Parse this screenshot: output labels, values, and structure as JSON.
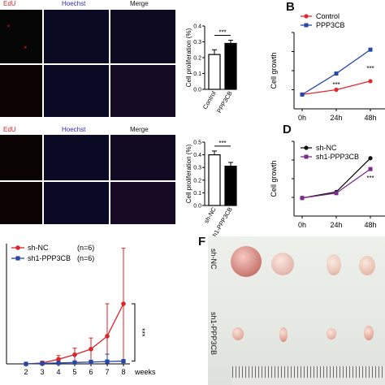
{
  "panel_letters": {
    "b": "B",
    "d": "D",
    "f": "F"
  },
  "micrograph_headers": {
    "top": {
      "edu": "EdU",
      "hoechst": "Hoechst",
      "merge": "Merge"
    },
    "bottom": {
      "edu": "EdU",
      "hoechst": "Hoechst",
      "merge": "Merge"
    }
  },
  "photo": {
    "row1_label": "sh-NC",
    "row2_label": "sh1-PPP3CB"
  },
  "chart_data": [
    {
      "id": "A-bar",
      "type": "bar",
      "categories": [
        "Control",
        "PPP3CB"
      ],
      "values": [
        0.22,
        0.29
      ],
      "errors": [
        0.03,
        0.02
      ],
      "fills": [
        "#ffffff",
        "#000000"
      ],
      "ylabel": "Cell proliferation (%)",
      "ylim": [
        0.0,
        0.4
      ],
      "yticks": [
        "0.0",
        "0.1",
        "0.2",
        "0.3",
        "0.4"
      ],
      "annotation": "***"
    },
    {
      "id": "B-line",
      "type": "line",
      "categories": [
        "0h",
        "24h",
        "48h"
      ],
      "series": [
        {
          "name": "Control",
          "color": "#e0282e",
          "marker": "circle",
          "values": [
            0.15,
            0.2,
            0.29
          ]
        },
        {
          "name": "PPP3CB",
          "color": "#2747a8",
          "marker": "square",
          "values": [
            0.15,
            0.37,
            0.62
          ]
        }
      ],
      "ylabel": "Cell growth",
      "annotations": [
        "***",
        "***"
      ]
    },
    {
      "id": "C-bar",
      "type": "bar",
      "categories": [
        "sh-NC",
        "sh1-PPP3CB"
      ],
      "values": [
        0.4,
        0.31
      ],
      "errors": [
        0.03,
        0.03
      ],
      "fills": [
        "#ffffff",
        "#000000"
      ],
      "ylabel": "Cell proliferation (%)",
      "ylim": [
        0.0,
        0.5
      ],
      "yticks": [
        "0.0",
        "0.1",
        "0.2",
        "0.3",
        "0.4",
        "0.5"
      ],
      "annotation": "***"
    },
    {
      "id": "D-line",
      "type": "line",
      "categories": [
        "0h",
        "24h",
        "48h"
      ],
      "series": [
        {
          "name": "sh-NC",
          "color": "#111111",
          "marker": "circle",
          "values": [
            0.15,
            0.2,
            0.48
          ]
        },
        {
          "name": "sh1-PPP3CB",
          "color": "#7a2c8c",
          "marker": "square",
          "values": [
            0.15,
            0.19,
            0.39
          ]
        }
      ],
      "ylabel": "Cell growth",
      "annotations": [
        "***"
      ]
    },
    {
      "id": "E-line",
      "type": "line",
      "x": [
        2,
        3,
        4,
        5,
        6,
        7,
        8
      ],
      "xticks": [
        "2",
        "3",
        "4",
        "5",
        "6",
        "7",
        "8"
      ],
      "xlabel": "weeks",
      "series": [
        {
          "name": "sh-NC",
          "n_label": "(n=6)",
          "color": "#d9262b",
          "marker": "circle",
          "values": [
            0.0,
            0.1,
            0.5,
            1.0,
            1.6,
            3.0,
            6.5
          ],
          "errors": [
            0.05,
            0.2,
            0.4,
            0.7,
            1.2,
            3.5,
            6.0
          ]
        },
        {
          "name": "sh1-PPP3CB",
          "n_label": "(n=6)",
          "color": "#2747a8",
          "marker": "square",
          "values": [
            0.0,
            0.05,
            0.1,
            0.15,
            0.2,
            0.25,
            0.3
          ],
          "errors": [
            0.02,
            0.05,
            0.08,
            0.12,
            0.2,
            0.8,
            0.15
          ]
        }
      ],
      "ylim": [
        0,
        13
      ],
      "annotation": "***"
    }
  ]
}
